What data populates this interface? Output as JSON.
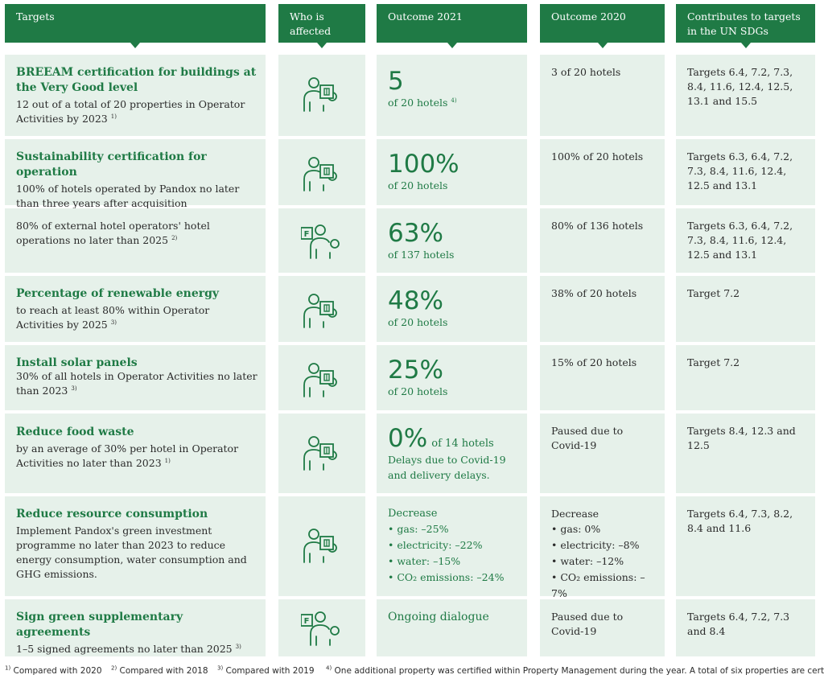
{
  "headers": [
    "Targets",
    "Who is affected",
    "Outcome 2021",
    "Outcome 2020",
    "Contributes to targets in the UN SDGs"
  ],
  "rows": [
    {
      "title": "BREEAM certification for buildings at the Very Good level",
      "desc": "12 out of a total of 20 properties in Operator Activities by 2023",
      "desc_sup": "1)",
      "icon": "person-with-building-icon",
      "o21_big": "5",
      "o21_sub": "of 20 hotels",
      "o21_sup": "4)",
      "o20": "3 of 20 hotels",
      "sdg": "Targets 6.4, 7.2, 7.3, 8.4, 11.6, 12.4, 12.5, 13.1 and 15.5"
    },
    {
      "title": "Sustainability certification for operation",
      "desc": "100% of hotels operated by Pandox no later than three years after acquisition",
      "icon": "person-with-building-icon",
      "o21_big": "100%",
      "o21_sub": "of 20 hotels",
      "o20": "100% of 20 hotels",
      "sdg": "Targets 6.3, 6.4, 7.2, 7.3, 8.4, 11.6, 12.4, 12.5 and 13.1"
    },
    {
      "desc": "80% of external hotel operators' hotel operations no later than 2025",
      "desc_sup": "2)",
      "icon": "person-with-f-sign-icon",
      "o21_big": "63%",
      "o21_sub": "of 137 hotels",
      "o20": "80% of 136 hotels",
      "sdg": "Targets 6.3, 6.4, 7.2, 7.3, 8.4, 11.6, 12.4, 12.5 and 13.1"
    },
    {
      "title": "Percentage of renewable energy",
      "desc": "to reach at least 80% within Operator Activities by 2025",
      "desc_sup": "3)",
      "icon": "person-with-building-icon",
      "o21_big": "48%",
      "o21_sub": "of 20 hotels",
      "o20": "38% of 20 hotels",
      "sdg": "Target 7.2"
    },
    {
      "title": "Install solar panels",
      "desc": "30% of all hotels in Operator Activities no later than 2023",
      "desc_sup": "3)",
      "icon": "person-with-building-icon",
      "o21_big": "25%",
      "o21_sub": "of 20 hotels",
      "o20": "15% of 20 hotels",
      "sdg": "Target 7.2"
    },
    {
      "title": "Reduce food waste",
      "desc": "by an average of 30% per hotel in Operator Activities no later than 2023",
      "desc_sup": "1)",
      "icon": "person-with-building-icon",
      "o21_big": "0%",
      "o21_inline": "of 14 hotels",
      "o21_note": "Delays due to Covid-19 and delivery delays.",
      "o20": "Paused due to Covid-19",
      "sdg": "Targets 8.4, 12.3 and 12.5"
    },
    {
      "title": "Reduce resource consumption",
      "desc": "Implement Pandox's green investment programme no later than 2023 to reduce energy consumption, water consumption and GHG emissions.",
      "icon": "person-with-building-icon",
      "o21_head": "Decrease",
      "o21_list": [
        "gas: –25%",
        "electricity: –22%",
        "water: –15%",
        "CO₂ emissions: –24%"
      ],
      "o20_head": "Decrease",
      "o20_list": [
        "gas: 0%",
        "electricity: –8%",
        "water: –12%",
        "CO₂ emissions: –7%"
      ],
      "sdg": "Targets 6.4, 7.3, 8.2, 8.4 and 11.6"
    },
    {
      "title": "Sign green supplementary agreements",
      "desc": "1–5 signed agreements no later than 2025",
      "desc_sup": "3)",
      "icon": "person-with-f-sign-icon",
      "o21_text": "Ongoing dialogue",
      "o20": "Paused due to Covid-19",
      "sdg": "Targets 6.4, 7.2, 7.3 and 8.4"
    }
  ],
  "footnotes": [
    {
      "mark": "1)",
      "text": "Compared with 2020"
    },
    {
      "mark": "2)",
      "text": "Compared with 2018"
    },
    {
      "mark": "3)",
      "text": "Compared with 2019"
    },
    {
      "mark": "4)",
      "text": "One additional property was certified within Property Management during the year. A total of six properties are certified."
    }
  ],
  "colors": {
    "brand_green": "#1f7a45",
    "cell_bg": "#e6f1ea"
  }
}
